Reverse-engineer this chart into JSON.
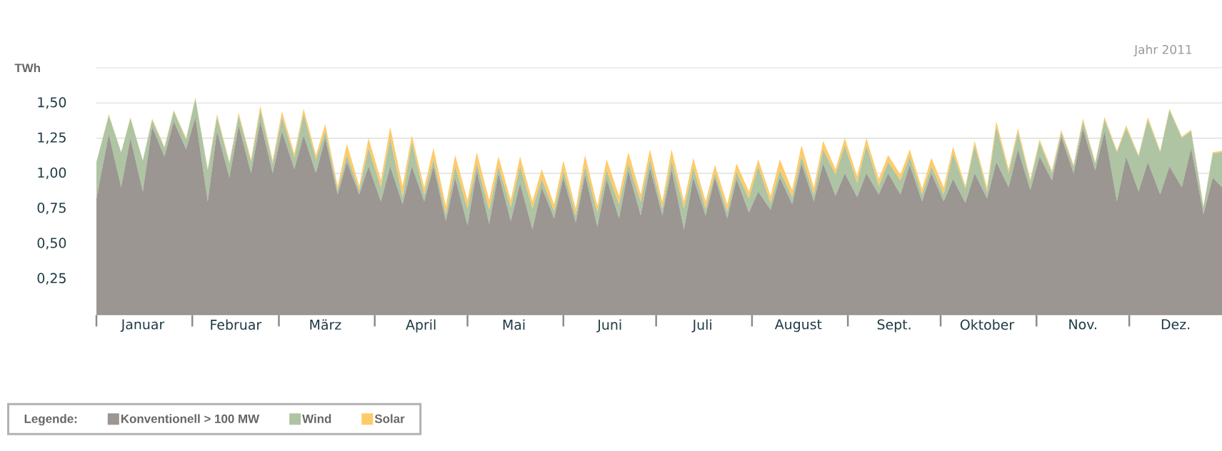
{
  "chart_data": {
    "type": "area",
    "stacked": true,
    "subtitle": "Jahr 2011",
    "ylabel": "TWh",
    "legend_title": "Legende:",
    "legend": "bottom left",
    "grid": "y",
    "x": [
      "2011-01-01",
      "2011-01-05",
      "2011-01-09",
      "2011-01-12",
      "2011-01-16",
      "2011-01-19",
      "2011-01-23",
      "2011-01-26",
      "2011-01-30",
      "2011-02-02",
      "2011-02-06",
      "2011-02-09",
      "2011-02-13",
      "2011-02-16",
      "2011-02-20",
      "2011-02-23",
      "2011-02-27",
      "2011-03-02",
      "2011-03-06",
      "2011-03-09",
      "2011-03-13",
      "2011-03-16",
      "2011-03-20",
      "2011-03-23",
      "2011-03-27",
      "2011-03-30",
      "2011-04-03",
      "2011-04-06",
      "2011-04-10",
      "2011-04-13",
      "2011-04-17",
      "2011-04-20",
      "2011-04-24",
      "2011-04-27",
      "2011-05-01",
      "2011-05-04",
      "2011-05-08",
      "2011-05-11",
      "2011-05-15",
      "2011-05-18",
      "2011-05-22",
      "2011-05-25",
      "2011-05-29",
      "2011-06-01",
      "2011-06-05",
      "2011-06-08",
      "2011-06-12",
      "2011-06-15",
      "2011-06-19",
      "2011-06-22",
      "2011-06-26",
      "2011-06-29",
      "2011-07-03",
      "2011-07-06",
      "2011-07-10",
      "2011-07-13",
      "2011-07-17",
      "2011-07-20",
      "2011-07-24",
      "2011-07-27",
      "2011-07-31",
      "2011-08-03",
      "2011-08-07",
      "2011-08-10",
      "2011-08-14",
      "2011-08-17",
      "2011-08-21",
      "2011-08-24",
      "2011-08-28",
      "2011-08-31",
      "2011-09-04",
      "2011-09-07",
      "2011-09-11",
      "2011-09-14",
      "2011-09-18",
      "2011-09-21",
      "2011-09-25",
      "2011-09-28",
      "2011-10-02",
      "2011-10-05",
      "2011-10-09",
      "2011-10-12",
      "2011-10-16",
      "2011-10-19",
      "2011-10-23",
      "2011-10-26",
      "2011-10-30",
      "2011-11-02",
      "2011-11-06",
      "2011-11-09",
      "2011-11-13",
      "2011-11-16",
      "2011-11-20",
      "2011-11-23",
      "2011-11-27",
      "2011-11-30",
      "2011-12-04",
      "2011-12-07",
      "2011-12-11",
      "2011-12-14",
      "2011-12-18",
      "2011-12-21",
      "2011-12-25",
      "2011-12-28",
      "2011-12-31"
    ],
    "series": [
      {
        "name": "Konventionell > 100 MW",
        "color": "#9b9692",
        "values": [
          0.82,
          1.28,
          0.9,
          1.25,
          0.87,
          1.33,
          1.12,
          1.37,
          1.17,
          1.4,
          0.8,
          1.3,
          0.97,
          1.34,
          1.0,
          1.37,
          1.0,
          1.3,
          1.03,
          1.27,
          1.0,
          1.25,
          0.85,
          1.08,
          0.85,
          1.05,
          0.8,
          1.05,
          0.78,
          1.05,
          0.8,
          1.05,
          0.66,
          0.97,
          0.63,
          1.02,
          0.64,
          1.0,
          0.66,
          0.93,
          0.6,
          0.9,
          0.68,
          0.97,
          0.65,
          0.99,
          0.62,
          0.96,
          0.68,
          1.02,
          0.7,
          1.04,
          0.7,
          1.03,
          0.6,
          0.97,
          0.7,
          0.97,
          0.68,
          0.96,
          0.72,
          0.87,
          0.74,
          0.97,
          0.78,
          1.07,
          0.8,
          1.07,
          0.84,
          1.0,
          0.83,
          1.0,
          0.85,
          1.0,
          0.85,
          1.06,
          0.8,
          1.0,
          0.8,
          0.96,
          0.79,
          1.0,
          0.82,
          1.08,
          0.9,
          1.17,
          0.88,
          1.12,
          0.95,
          1.26,
          1.0,
          1.32,
          1.02,
          1.3,
          0.8,
          1.12,
          0.87,
          1.08,
          0.85,
          1.05,
          0.9,
          1.18,
          0.71,
          0.97,
          0.9
        ]
      },
      {
        "name": "Wind",
        "color": "#aec4a3",
        "values": [
          0.26,
          0.13,
          0.25,
          0.14,
          0.22,
          0.05,
          0.06,
          0.07,
          0.07,
          0.13,
          0.22,
          0.1,
          0.1,
          0.07,
          0.08,
          0.08,
          0.07,
          0.1,
          0.08,
          0.15,
          0.1,
          0.05,
          0.03,
          0.05,
          0.03,
          0.13,
          0.1,
          0.2,
          0.05,
          0.17,
          0.05,
          0.05,
          0.05,
          0.08,
          0.12,
          0.05,
          0.1,
          0.05,
          0.1,
          0.12,
          0.15,
          0.06,
          0.05,
          0.05,
          0.05,
          0.06,
          0.1,
          0.06,
          0.1,
          0.05,
          0.1,
          0.06,
          0.05,
          0.06,
          0.15,
          0.07,
          0.05,
          0.03,
          0.05,
          0.05,
          0.1,
          0.18,
          0.05,
          0.05,
          0.05,
          0.05,
          0.05,
          0.1,
          0.15,
          0.2,
          0.1,
          0.2,
          0.06,
          0.08,
          0.1,
          0.06,
          0.05,
          0.05,
          0.05,
          0.18,
          0.1,
          0.2,
          0.05,
          0.25,
          0.1,
          0.12,
          0.06,
          0.1,
          0.05,
          0.03,
          0.05,
          0.05,
          0.05,
          0.08,
          0.35,
          0.2,
          0.25,
          0.3,
          0.3,
          0.4,
          0.35,
          0.12,
          0.05,
          0.17,
          0.25
        ]
      },
      {
        "name": "Solar",
        "color": "#fecb6a",
        "values": [
          0.0,
          0.01,
          0.0,
          0.01,
          0.0,
          0.01,
          0.01,
          0.01,
          0.01,
          0.01,
          0.01,
          0.02,
          0.01,
          0.02,
          0.02,
          0.03,
          0.02,
          0.04,
          0.03,
          0.04,
          0.03,
          0.05,
          0.03,
          0.08,
          0.03,
          0.07,
          0.05,
          0.08,
          0.08,
          0.05,
          0.05,
          0.08,
          0.06,
          0.08,
          0.06,
          0.08,
          0.07,
          0.07,
          0.05,
          0.07,
          0.05,
          0.07,
          0.05,
          0.07,
          0.05,
          0.08,
          0.05,
          0.08,
          0.06,
          0.08,
          0.05,
          0.07,
          0.05,
          0.08,
          0.05,
          0.07,
          0.05,
          0.06,
          0.05,
          0.06,
          0.05,
          0.05,
          0.05,
          0.08,
          0.05,
          0.08,
          0.05,
          0.06,
          0.04,
          0.05,
          0.05,
          0.05,
          0.05,
          0.05,
          0.04,
          0.05,
          0.04,
          0.06,
          0.05,
          0.05,
          0.02,
          0.03,
          0.03,
          0.04,
          0.03,
          0.03,
          0.02,
          0.02,
          0.02,
          0.02,
          0.01,
          0.02,
          0.01,
          0.02,
          0.01,
          0.02,
          0.01,
          0.02,
          0.01,
          0.01,
          0.01,
          0.01,
          0.01,
          0.01,
          0.01
        ]
      }
    ],
    "xlim": [
      "2011-01-01",
      "2011-12-31"
    ],
    "xticks": [
      {
        "value": "2011-01-01",
        "label": null
      },
      {
        "value": "2011-02-01",
        "label": null
      },
      {
        "value": "2011-03-01",
        "label": null
      },
      {
        "value": "2011-04-01",
        "label": null
      },
      {
        "value": "2011-05-01",
        "label": null
      },
      {
        "value": "2011-06-01",
        "label": null
      },
      {
        "value": "2011-07-01",
        "label": null
      },
      {
        "value": "2011-08-01",
        "label": null
      },
      {
        "value": "2011-09-01",
        "label": null
      },
      {
        "value": "2011-10-01",
        "label": null
      },
      {
        "value": "2011-11-01",
        "label": null
      },
      {
        "value": "2011-12-01",
        "label": null
      },
      {
        "value": "2011-01-16",
        "label": "Januar"
      },
      {
        "value": "2011-02-15",
        "label": "Februar"
      },
      {
        "value": "2011-03-16",
        "label": "März"
      },
      {
        "value": "2011-04-16",
        "label": "April"
      },
      {
        "value": "2011-05-16",
        "label": "Mai"
      },
      {
        "value": "2011-06-16",
        "label": "Juni"
      },
      {
        "value": "2011-07-16",
        "label": "Juli"
      },
      {
        "value": "2011-08-16",
        "label": "August"
      },
      {
        "value": "2011-09-16",
        "label": "Sept."
      },
      {
        "value": "2011-10-16",
        "label": "Oktober"
      },
      {
        "value": "2011-11-16",
        "label": "Nov."
      },
      {
        "value": "2011-12-16",
        "label": "Dez."
      }
    ],
    "ylim": [
      0,
      1.75
    ],
    "yticks": [
      {
        "value": 0.25,
        "label": "0,25"
      },
      {
        "value": 0.5,
        "label": "0,50"
      },
      {
        "value": 0.75,
        "label": "0,75"
      },
      {
        "value": 1.0,
        "label": "1,00"
      },
      {
        "value": 1.25,
        "label": "1,25"
      },
      {
        "value": 1.5,
        "label": "1,50"
      },
      {
        "value": 1.75,
        "label": null
      }
    ]
  }
}
